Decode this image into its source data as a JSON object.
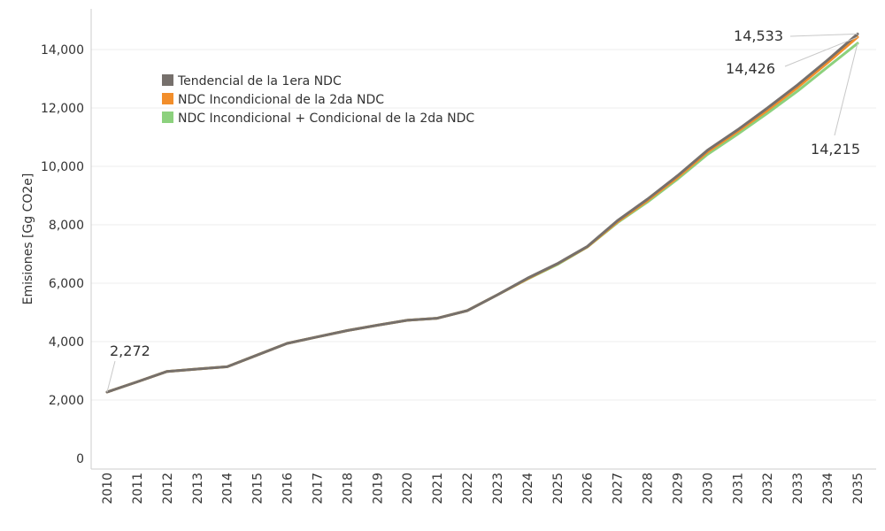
{
  "chart_data": {
    "type": "line",
    "title": "",
    "xlabel": "",
    "ylabel": "Emisiones [Gg CO2e]",
    "ylim": [
      0,
      15000
    ],
    "yticks": [
      "0",
      "2,000",
      "4,000",
      "6,000",
      "8,000",
      "10,000",
      "12,000",
      "14,000"
    ],
    "ytick_values": [
      0,
      2000,
      4000,
      6000,
      8000,
      10000,
      12000,
      14000
    ],
    "x": [
      "2010",
      "2011",
      "2012",
      "2013",
      "2014",
      "2015",
      "2016",
      "2017",
      "2018",
      "2019",
      "2020",
      "2021",
      "2022",
      "2023",
      "2024",
      "2025",
      "2026",
      "2027",
      "2028",
      "2029",
      "2030",
      "2031",
      "2032",
      "2033",
      "2034",
      "2035"
    ],
    "grid": true,
    "legend_position": "top-left",
    "series": [
      {
        "name": "Tendencial de la 1era NDC",
        "color": "#76706C",
        "values": [
          2272,
          2620,
          2980,
          3060,
          3140,
          3540,
          3940,
          4160,
          4380,
          4560,
          4730,
          4800,
          5060,
          5600,
          6170,
          6670,
          7260,
          8140,
          8880,
          9680,
          10550,
          11250,
          12000,
          12790,
          13640,
          14533
        ]
      },
      {
        "name": "NDC Incondicional de la 2da NDC",
        "color": "#F28E2B",
        "values": [
          2272,
          2620,
          2980,
          3060,
          3140,
          3540,
          3940,
          4160,
          4380,
          4560,
          4730,
          4800,
          5060,
          5600,
          6150,
          6660,
          7250,
          8100,
          8830,
          9620,
          10490,
          11190,
          11920,
          12700,
          13550,
          14426
        ]
      },
      {
        "name": "NDC Incondicional + Condicional de la 2da NDC",
        "color": "#8CD17D",
        "values": [
          2272,
          2620,
          2980,
          3060,
          3140,
          3540,
          3940,
          4160,
          4380,
          4560,
          4730,
          4800,
          5060,
          5600,
          6140,
          6640,
          7240,
          8070,
          8780,
          9560,
          10410,
          11100,
          11820,
          12580,
          13400,
          14215
        ]
      }
    ],
    "annotations": [
      {
        "text": "2,272",
        "series": 0,
        "index": 0
      },
      {
        "text": "14,533",
        "series": 0,
        "index": 25
      },
      {
        "text": "14,426",
        "series": 1,
        "index": 25
      },
      {
        "text": "14,215",
        "series": 2,
        "index": 25
      }
    ]
  }
}
